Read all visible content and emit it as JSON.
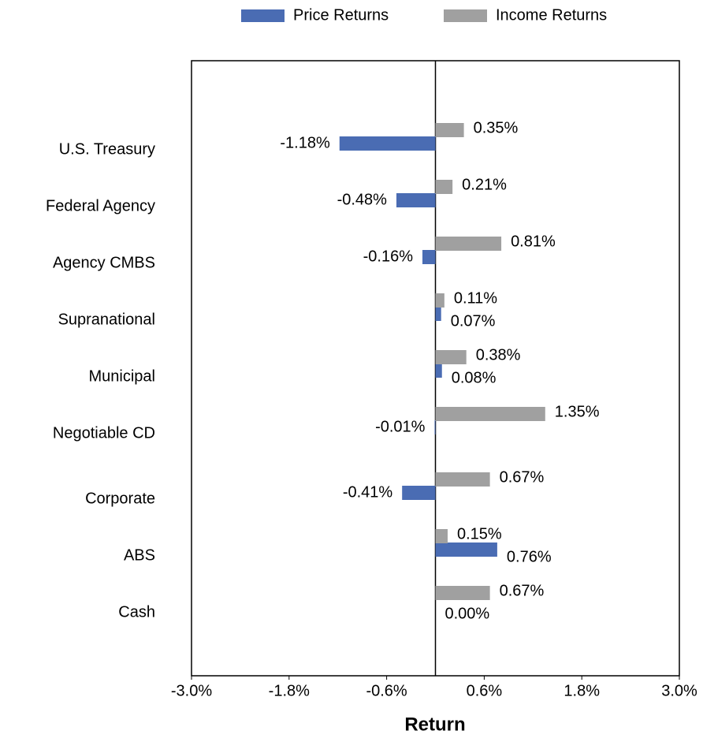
{
  "chart_data": {
    "type": "hbar",
    "x_label": "Return",
    "categories": [
      "U.S. Treasury",
      "Federal Agency",
      "Agency CMBS",
      "Supranational",
      "Municipal",
      "Negotiable CD",
      "Corporate",
      "ABS",
      "Cash"
    ],
    "series": [
      {
        "name": "Price Returns",
        "color": "#4a6cb3",
        "values": [
          -1.18,
          -0.48,
          -0.16,
          0.07,
          0.08,
          -0.01,
          -0.41,
          0.76,
          0.0
        ],
        "value_labels": [
          "-1.18%",
          "-0.48%",
          "-0.16%",
          "0.07%",
          "0.08%",
          "-0.01%",
          "-0.41%",
          "0.76%",
          "0.00%"
        ]
      },
      {
        "name": "Income Returns",
        "color": "#a0a0a0",
        "values": [
          0.35,
          0.21,
          0.81,
          0.11,
          0.38,
          1.35,
          0.67,
          0.15,
          0.67
        ],
        "value_labels": [
          "0.35%",
          "0.21%",
          "0.81%",
          "0.11%",
          "0.38%",
          "1.35%",
          "0.67%",
          "0.15%",
          "0.67%"
        ]
      }
    ],
    "xlim": [
      -3,
      3
    ],
    "xticks": [
      {
        "value": -3,
        "label": "-3.0%"
      },
      {
        "value": -1.8,
        "label": "-1.8%"
      },
      {
        "value": -0.6,
        "label": "-0.6%"
      },
      {
        "value": 0.6,
        "label": "0.6%"
      },
      {
        "value": 1.8,
        "label": "1.8%"
      },
      {
        "value": 3,
        "label": "3.0%"
      }
    ],
    "legend": "top",
    "grid": false
  }
}
